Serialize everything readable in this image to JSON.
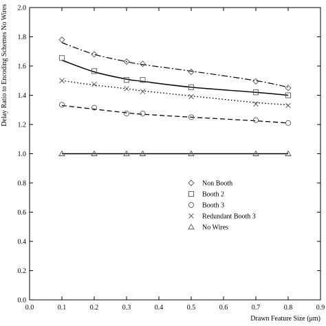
{
  "chart_data": {
    "type": "line",
    "xlabel": "Drawn Feature Size (μm)",
    "ylabel": "Delay Ratio to Encoding Schemes No Wires",
    "xlim": [
      0.0,
      0.9
    ],
    "ylim": [
      0.0,
      2.0
    ],
    "xticks": [
      "0.0",
      "0.1",
      "0.2",
      "0.3",
      "0.4",
      "0.5",
      "0.6",
      "0.7",
      "0.8",
      "0.9"
    ],
    "yticks": [
      "0.0",
      "0.2",
      "0.4",
      "0.6",
      "0.8",
      "1.0",
      "1.2",
      "1.4",
      "1.6",
      "1.8",
      "2.0"
    ],
    "grid": false,
    "legend_position": "center-right",
    "series": [
      {
        "name": "Non Booth",
        "marker": "diamond",
        "line": "dash-dot",
        "x": [
          0.1,
          0.2,
          0.3,
          0.35,
          0.5,
          0.7,
          0.8
        ],
        "y": [
          1.78,
          1.68,
          1.63,
          1.615,
          1.56,
          1.495,
          1.45
        ],
        "fit_x": [
          0.1,
          0.2,
          0.3,
          0.35,
          0.5,
          0.7,
          0.8
        ],
        "fit_y": [
          1.76,
          1.68,
          1.63,
          1.61,
          1.565,
          1.5,
          1.455
        ]
      },
      {
        "name": "Booth 2",
        "marker": "square",
        "line": "solid",
        "x": [
          0.1,
          0.2,
          0.3,
          0.35,
          0.5,
          0.7,
          0.8
        ],
        "y": [
          1.655,
          1.565,
          1.505,
          1.505,
          1.455,
          1.42,
          1.4
        ],
        "fit_x": [
          0.1,
          0.2,
          0.3,
          0.35,
          0.5,
          0.7,
          0.8
        ],
        "fit_y": [
          1.64,
          1.56,
          1.51,
          1.495,
          1.455,
          1.42,
          1.4
        ]
      },
      {
        "name": "Booth 3",
        "marker": "circle",
        "line": "dashed",
        "x": [
          0.1,
          0.2,
          0.3,
          0.35,
          0.5,
          0.7,
          0.8
        ],
        "y": [
          1.335,
          1.315,
          1.275,
          1.275,
          1.25,
          1.23,
          1.21
        ],
        "fit_x": [
          0.1,
          0.2,
          0.3,
          0.35,
          0.5,
          0.7,
          0.8
        ],
        "fit_y": [
          1.33,
          1.305,
          1.28,
          1.27,
          1.25,
          1.225,
          1.21
        ]
      },
      {
        "name": "Redundant Booth 3",
        "marker": "cross",
        "line": "dotted",
        "x": [
          0.1,
          0.2,
          0.3,
          0.35,
          0.5,
          0.7,
          0.8
        ],
        "y": [
          1.5,
          1.475,
          1.445,
          1.425,
          1.39,
          1.34,
          1.33
        ],
        "fit_x": [
          0.1,
          0.2,
          0.3,
          0.35,
          0.5,
          0.7,
          0.8
        ],
        "fit_y": [
          1.5,
          1.47,
          1.445,
          1.43,
          1.395,
          1.35,
          1.335
        ]
      },
      {
        "name": "No Wires",
        "marker": "triangle",
        "line": "solid",
        "x": [
          0.1,
          0.2,
          0.3,
          0.35,
          0.5,
          0.7,
          0.8
        ],
        "y": [
          1.0,
          1.0,
          1.0,
          1.0,
          1.0,
          1.0,
          1.0
        ],
        "fit_x": [
          0.1,
          0.8
        ],
        "fit_y": [
          1.0,
          1.0
        ]
      }
    ]
  }
}
